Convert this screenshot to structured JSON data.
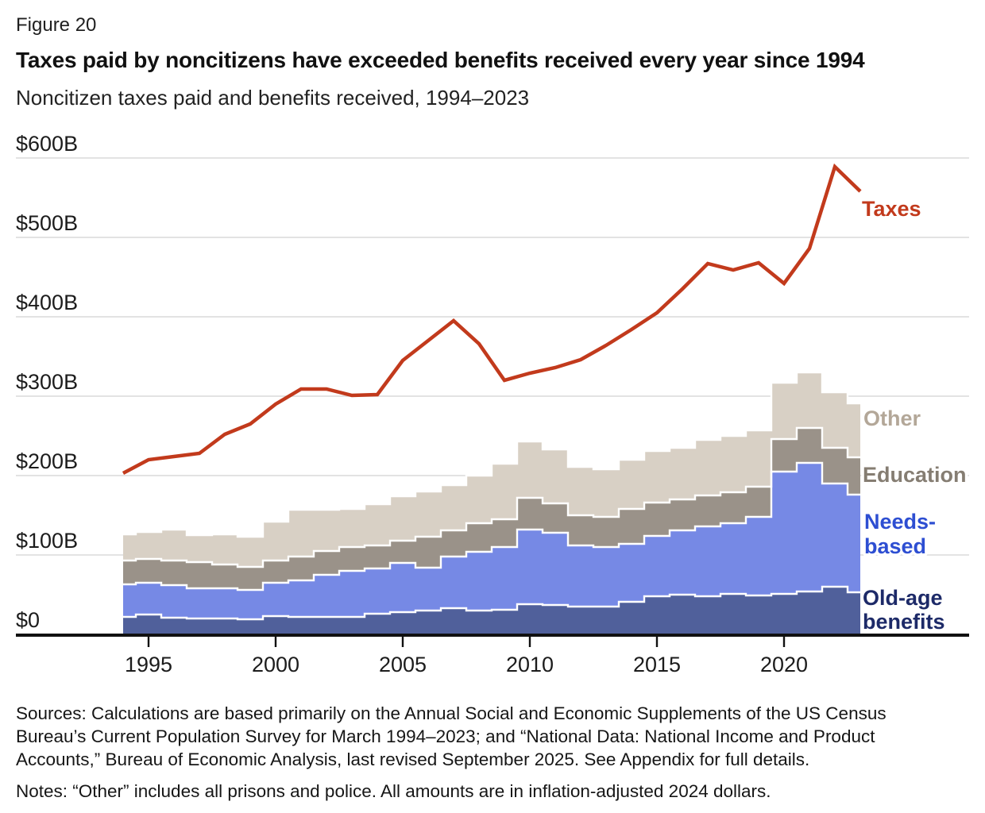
{
  "figure_label": "Figure 20",
  "title": "Taxes paid by noncitizens have exceeded benefits received every year since 1994",
  "subtitle": "Noncitizen taxes paid and benefits received, 1994–2023",
  "footer": {
    "sources": "Sources: Calculations are based primarily on the Annual Social and Economic Supplements of the US Census Bureau’s Current Population Survey for March 1994–2023; and “National Data: National Income and Product Accounts,” Bureau of Economic Analysis, last revised September 2025. See Appendix for full details.",
    "notes": "Notes: “Other” includes all prisons and police. All amounts are in inflation-adjusted 2024 dollars."
  },
  "chart_data": {
    "type": "area",
    "description": "Stacked step-area chart of benefits received (four categories, $B) with an overlaid line for taxes paid, 1994-2023",
    "x": [
      1994,
      1995,
      1996,
      1997,
      1998,
      1999,
      2000,
      2001,
      2002,
      2003,
      2004,
      2005,
      2006,
      2007,
      2008,
      2009,
      2010,
      2011,
      2012,
      2013,
      2014,
      2015,
      2016,
      2017,
      2018,
      2019,
      2020,
      2021,
      2022,
      2023
    ],
    "series": [
      {
        "name": "Old-age benefits",
        "type": "stacked-step-area",
        "color": "#50609b",
        "label_lines": [
          "Old-age",
          "benefits"
        ],
        "label_color": "#1d2a68",
        "values": [
          22,
          25,
          21,
          20,
          20,
          19,
          23,
          22,
          22,
          22,
          26,
          28,
          30,
          33,
          30,
          31,
          38,
          37,
          35,
          35,
          41,
          48,
          50,
          48,
          51,
          49,
          51,
          54,
          60,
          53
        ]
      },
      {
        "name": "Needs-based",
        "type": "stacked-step-area",
        "color": "#7689e5",
        "label_lines": [
          "Needs-",
          "based"
        ],
        "label_color": "#2d4ed2",
        "values": [
          41,
          40,
          41,
          38,
          38,
          37,
          42,
          46,
          53,
          58,
          57,
          62,
          54,
          65,
          74,
          79,
          94,
          91,
          77,
          75,
          73,
          76,
          81,
          88,
          89,
          99,
          154,
          162,
          130,
          123
        ]
      },
      {
        "name": "Education",
        "type": "stacked-step-area",
        "color": "#9a9289",
        "label_lines": [
          "Education"
        ],
        "label_color": "#857d72",
        "values": [
          30,
          30,
          31,
          33,
          30,
          29,
          28,
          30,
          30,
          30,
          29,
          28,
          39,
          33,
          36,
          35,
          40,
          37,
          38,
          38,
          44,
          42,
          39,
          39,
          39,
          38,
          41,
          44,
          45,
          47
        ]
      },
      {
        "name": "Other",
        "type": "stacked-step-area",
        "color": "#d8d0c5",
        "label_lines": [
          "Other"
        ],
        "label_color": "#b3a798",
        "values": [
          33,
          34,
          39,
          34,
          38,
          38,
          49,
          59,
          52,
          48,
          52,
          56,
          57,
          57,
          60,
          70,
          71,
          68,
          61,
          60,
          62,
          65,
          65,
          70,
          71,
          71,
          71,
          70,
          70,
          68
        ]
      },
      {
        "name": "Taxes",
        "type": "line",
        "color": "#c23a1c",
        "label_lines": [
          "Taxes"
        ],
        "label_color": "#c23a1c",
        "values": [
          203,
          220,
          224,
          228,
          252,
          265,
          290,
          309,
          309,
          301,
          302,
          345,
          370,
          395,
          366,
          320,
          329,
          336,
          346,
          364,
          384,
          405,
          435,
          467,
          459,
          468,
          442,
          486,
          589,
          558
        ]
      }
    ],
    "ylim": [
      0,
      600
    ],
    "yticks": [
      {
        "value": 0,
        "label": "$0"
      },
      {
        "value": 100,
        "label": "$100B"
      },
      {
        "value": 200,
        "label": "$200B"
      },
      {
        "value": 300,
        "label": "$300B"
      },
      {
        "value": 400,
        "label": "$400B"
      },
      {
        "value": 500,
        "label": "$500B"
      },
      {
        "value": 600,
        "label": "$600B"
      }
    ],
    "xticks": [
      1995,
      2000,
      2005,
      2010,
      2015,
      2020
    ],
    "grid": true,
    "legend_position": "right-inline",
    "units": "billions of 2024 US dollars"
  }
}
